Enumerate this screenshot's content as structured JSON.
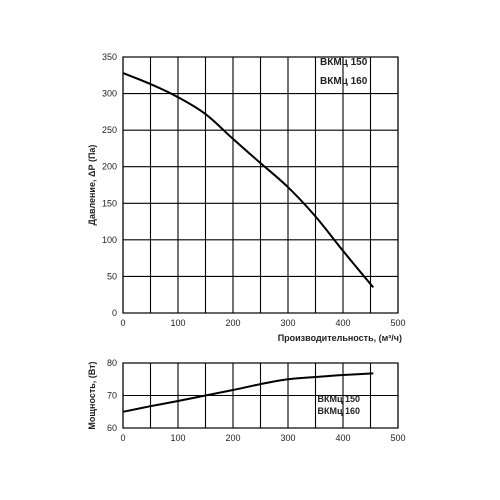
{
  "chart_data": [
    {
      "type": "line",
      "xlabel": "Производительность, (м³/ч)",
      "ylabel": "Давление, ΔР (Па)",
      "xlim": [
        0,
        500
      ],
      "ylim": [
        0,
        350
      ],
      "xticks": [
        "0",
        "100",
        "200",
        "300",
        "400",
        "500"
      ],
      "yticks": [
        "0",
        "50",
        "100",
        "150",
        "200",
        "250",
        "300",
        "350"
      ],
      "grid": true,
      "legend_position": "top-right",
      "series": [
        {
          "name": "ВКМц 150\nВКМц 160",
          "x": [
            0,
            50,
            100,
            150,
            200,
            250,
            300,
            350,
            400,
            455
          ],
          "y": [
            328,
            313,
            295,
            272,
            238,
            205,
            172,
            132,
            85,
            35
          ]
        }
      ],
      "legend": [
        "ВКМц 150",
        "ВКМц 160"
      ]
    },
    {
      "type": "line",
      "xlabel": "",
      "ylabel": "Мощность, (Вт)",
      "xlim": [
        0,
        500
      ],
      "ylim": [
        60,
        80
      ],
      "xticks": [
        "0",
        "100",
        "200",
        "300",
        "400",
        "500"
      ],
      "yticks": [
        "60",
        "70",
        "80"
      ],
      "grid": true,
      "legend_position": "bottom-right",
      "series": [
        {
          "name": "ВКМц 150\nВКМц 160",
          "x": [
            0,
            50,
            100,
            150,
            200,
            250,
            300,
            350,
            400,
            455
          ],
          "y": [
            65,
            66.7,
            68.3,
            70,
            71.7,
            73.5,
            75,
            75.7,
            76.3,
            76.8
          ]
        }
      ],
      "legend": [
        "ВКМц 150",
        "ВКМц 160"
      ]
    }
  ]
}
